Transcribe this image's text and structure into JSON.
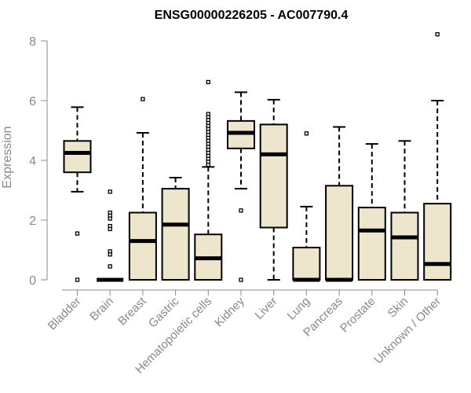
{
  "chart_data": {
    "type": "boxplot",
    "title": "ENSG00000226205 - AC007790.4",
    "xlabel": "",
    "ylabel": "Expression",
    "ylim": [
      0,
      8.4
    ],
    "yticks": [
      0,
      2,
      4,
      6,
      8
    ],
    "grid": false,
    "colors": {
      "box_fill": "#ede6cc",
      "box_stroke": "#000000",
      "axis": "#888888"
    },
    "categories": [
      "Bladder",
      "Brain",
      "Breast",
      "Gastric",
      "Hematopoietic cells",
      "Kidney",
      "Liver",
      "Lung",
      "Pancreas",
      "Prostate",
      "Skin",
      "Unknown / Other"
    ],
    "boxes": [
      {
        "min": 2.95,
        "q1": 3.6,
        "median": 4.25,
        "q3": 4.65,
        "max": 5.78,
        "outliers": [
          1.55,
          0.0
        ]
      },
      {
        "min": 0.0,
        "q1": 0.0,
        "median": 0.0,
        "q3": 0.0,
        "max": 0.0,
        "outliers": [
          2.95,
          2.25,
          2.15,
          2.05,
          1.8,
          1.7,
          0.95,
          0.85,
          0.45
        ]
      },
      {
        "min": 0.0,
        "q1": 0.0,
        "median": 1.3,
        "q3": 2.25,
        "max": 4.92,
        "outliers": [
          6.05
        ]
      },
      {
        "min": 0.0,
        "q1": 0.0,
        "median": 1.85,
        "q3": 3.05,
        "max": 3.42,
        "outliers": []
      },
      {
        "min": 0.0,
        "q1": 0.0,
        "median": 0.72,
        "q3": 1.52,
        "max": 3.78,
        "outliers": [
          6.62,
          5.55,
          5.45,
          5.35,
          5.25,
          5.15,
          5.05,
          4.95,
          4.85,
          4.75,
          4.65,
          4.55,
          4.45,
          4.35,
          4.25,
          4.15,
          4.05,
          3.95,
          3.85
        ]
      },
      {
        "min": 3.05,
        "q1": 4.4,
        "median": 4.92,
        "q3": 5.32,
        "max": 6.28,
        "outliers": [
          2.32,
          0.0
        ]
      },
      {
        "min": 0.0,
        "q1": 1.75,
        "median": 4.2,
        "q3": 5.2,
        "max": 6.03,
        "outliers": []
      },
      {
        "min": 0.0,
        "q1": 0.0,
        "median": 0.0,
        "q3": 1.08,
        "max": 2.45,
        "outliers": [
          4.9
        ]
      },
      {
        "min": 0.0,
        "q1": 0.0,
        "median": 0.0,
        "q3": 3.15,
        "max": 5.12,
        "outliers": []
      },
      {
        "min": 0.0,
        "q1": 0.0,
        "median": 1.65,
        "q3": 2.42,
        "max": 4.55,
        "outliers": []
      },
      {
        "min": 0.0,
        "q1": 0.0,
        "median": 1.42,
        "q3": 2.25,
        "max": 4.65,
        "outliers": []
      },
      {
        "min": 0.0,
        "q1": 0.0,
        "median": 0.53,
        "q3": 2.55,
        "max": 6.0,
        "outliers": [
          8.22
        ]
      }
    ]
  }
}
